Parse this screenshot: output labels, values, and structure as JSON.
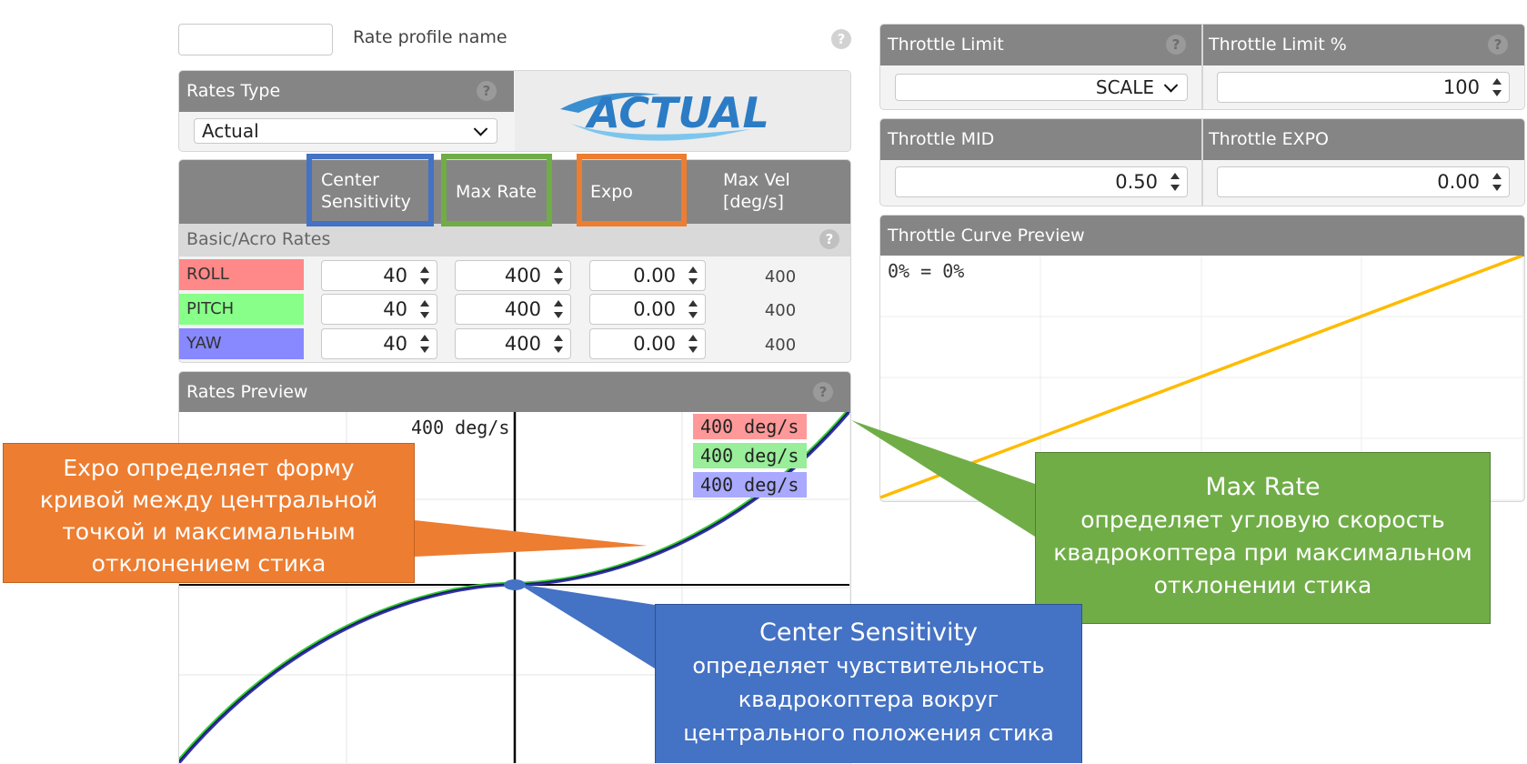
{
  "profile": {
    "name_value": "",
    "name_label": "Rate profile name"
  },
  "rates_type": {
    "title": "Rates Type",
    "selected": "Actual",
    "logo_text": "ACTUAL"
  },
  "columns": {
    "center_sensitivity": [
      "Center",
      "Sensitivity"
    ],
    "max_rate": "Max Rate",
    "expo": "Expo",
    "max_vel": [
      "Max Vel",
      "[deg/s]"
    ]
  },
  "section_label": "Basic/Acro Rates",
  "rates": [
    {
      "axis": "ROLL",
      "color": "#ff8888",
      "center": "40",
      "max_rate": "400",
      "expo": "0.00",
      "max_vel": "400"
    },
    {
      "axis": "PITCH",
      "color": "#88ff88",
      "center": "40",
      "max_rate": "400",
      "expo": "0.00",
      "max_vel": "400"
    },
    {
      "axis": "YAW",
      "color": "#8888ff",
      "center": "40",
      "max_rate": "400",
      "expo": "0.00",
      "max_vel": "400"
    }
  ],
  "rates_preview": {
    "title": "Rates Preview",
    "axis_label": "400 deg/s",
    "legend": [
      {
        "text": "400 deg/s",
        "color": "#ff9999"
      },
      {
        "text": "400 deg/s",
        "color": "#99ee99"
      },
      {
        "text": "400 deg/s",
        "color": "#a9a9ff"
      }
    ]
  },
  "throttle": {
    "limit_title": "Throttle Limit",
    "limit_value": "SCALE",
    "limit_pct_title": "Throttle Limit %",
    "limit_pct_value": "100",
    "mid_title": "Throttle MID",
    "mid_value": "0.50",
    "expo_title": "Throttle EXPO",
    "expo_value": "0.00",
    "curve_title": "Throttle Curve Preview",
    "curve_label": "0% = 0%",
    "curve_color": "#ffbb00"
  },
  "callouts": {
    "expo": [
      "Expo определяет форму",
      "кривой между центральной",
      "точкой и максимальным",
      "отклонением стика"
    ],
    "max_rate": [
      "Max Rate",
      "определяет угловую скорость",
      "квадрокоптера при максимальном",
      "отклонении стика"
    ],
    "center": [
      "Center Sensitivity",
      "определяет чувствительность",
      "квадрокоптера вокруг",
      "центрального положения стика"
    ]
  },
  "colors": {
    "highlight_blue": "#4472c4",
    "highlight_green": "#70ad47",
    "highlight_orange": "#ed7d31",
    "header_gray": "#858585"
  }
}
